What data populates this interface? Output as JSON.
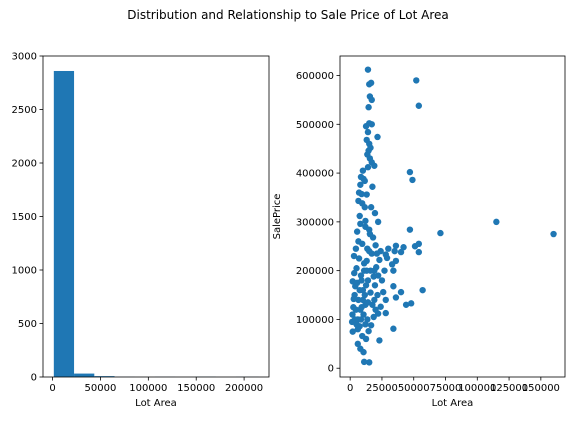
{
  "figure": {
    "suptitle": "Distribution and Relationship to Sale Price of Lot Area"
  },
  "chart_data": [
    {
      "type": "bar",
      "subtype": "histogram",
      "xlabel": "Lot Area",
      "ylabel": "",
      "xlim": [
        -10000,
        226000
      ],
      "ylim": [
        0,
        3000
      ],
      "color": "#1f77b4",
      "xticks": [
        0,
        50000,
        100000,
        150000,
        200000
      ],
      "xtick_labels": [
        "0",
        "50000",
        "100000",
        "150000",
        "200000"
      ],
      "yticks": [
        0,
        500,
        1000,
        1500,
        2000,
        2500,
        3000
      ],
      "ytick_labels": [
        "0",
        "500",
        "1000",
        "1500",
        "2000",
        "2500",
        "3000"
      ],
      "bins": [
        {
          "x0": 1300,
          "x1": 22430,
          "count": 2860
        },
        {
          "x0": 22430,
          "x1": 43560,
          "count": 32
        },
        {
          "x0": 43560,
          "x1": 64690,
          "count": 8
        },
        {
          "x0": 64690,
          "x1": 85820,
          "count": 1
        },
        {
          "x0": 85820,
          "x1": 106950,
          "count": 0
        },
        {
          "x0": 106950,
          "x1": 128080,
          "count": 1
        },
        {
          "x0": 128080,
          "x1": 149210,
          "count": 0
        },
        {
          "x0": 149210,
          "x1": 170340,
          "count": 2
        },
        {
          "x0": 170340,
          "x1": 191470,
          "count": 0
        },
        {
          "x0": 191470,
          "x1": 215245,
          "count": 1
        }
      ]
    },
    {
      "type": "scatter",
      "xlabel": "Lot Area",
      "ylabel": "SalePrice",
      "xlim": [
        -8000,
        169000
      ],
      "ylim": [
        -18000,
        640000
      ],
      "color": "#1f77b4",
      "xticks": [
        0,
        25000,
        50000,
        75000,
        100000,
        125000,
        150000
      ],
      "xtick_labels": [
        "0",
        "25000",
        "50000",
        "75000",
        "100000",
        "125000",
        "150000"
      ],
      "yticks": [
        0,
        100000,
        200000,
        300000,
        400000,
        500000,
        600000
      ],
      "ytick_labels": [
        "0",
        "100000",
        "200000",
        "300000",
        "400000",
        "500000",
        "600000"
      ],
      "points": [
        [
          14000,
          612000
        ],
        [
          52000,
          590000
        ],
        [
          16500,
          585000
        ],
        [
          15000,
          582000
        ],
        [
          15500,
          557000
        ],
        [
          17000,
          550000
        ],
        [
          54000,
          538000
        ],
        [
          14500,
          535000
        ],
        [
          15000,
          502000
        ],
        [
          17000,
          500000
        ],
        [
          12500,
          496000
        ],
        [
          14000,
          484000
        ],
        [
          21500,
          474000
        ],
        [
          13000,
          468000
        ],
        [
          15000,
          460000
        ],
        [
          16000,
          452000
        ],
        [
          14500,
          446000
        ],
        [
          13500,
          438000
        ],
        [
          15500,
          430000
        ],
        [
          17000,
          422000
        ],
        [
          19000,
          415000
        ],
        [
          14000,
          412000
        ],
        [
          10000,
          405000
        ],
        [
          47000,
          402000
        ],
        [
          49000,
          386000
        ],
        [
          8500,
          392000
        ],
        [
          11500,
          384000
        ],
        [
          17500,
          372000
        ],
        [
          8000,
          376000
        ],
        [
          13000,
          356000
        ],
        [
          6500,
          343000
        ],
        [
          9500,
          338000
        ],
        [
          16500,
          330000
        ],
        [
          19500,
          318000
        ],
        [
          22000,
          300000
        ],
        [
          8000,
          296000
        ],
        [
          12000,
          290000
        ],
        [
          15000,
          284000
        ],
        [
          47000,
          284000
        ],
        [
          71000,
          277000
        ],
        [
          115000,
          300000
        ],
        [
          160000,
          275000
        ],
        [
          36000,
          251000
        ],
        [
          51000,
          250000
        ],
        [
          54000,
          255000
        ],
        [
          42000,
          248000
        ],
        [
          30000,
          245000
        ],
        [
          35000,
          240000
        ],
        [
          24000,
          240000
        ],
        [
          40000,
          238000
        ],
        [
          28000,
          233000
        ],
        [
          54000,
          238000
        ],
        [
          29000,
          226000
        ],
        [
          36000,
          220000
        ],
        [
          33000,
          213000
        ],
        [
          34000,
          200000
        ],
        [
          27000,
          200000
        ],
        [
          19000,
          200000
        ],
        [
          22000,
          190000
        ],
        [
          25000,
          180000
        ],
        [
          34000,
          168000
        ],
        [
          40000,
          156000
        ],
        [
          57000,
          160000
        ],
        [
          26000,
          156000
        ],
        [
          36000,
          145000
        ],
        [
          28000,
          140000
        ],
        [
          44000,
          130000
        ],
        [
          48000,
          133000
        ],
        [
          24000,
          126000
        ],
        [
          22000,
          112000
        ],
        [
          28000,
          113000
        ],
        [
          34000,
          81000
        ],
        [
          23000,
          57000
        ],
        [
          11000,
          13000
        ],
        [
          15000,
          12000
        ],
        [
          10500,
          33000
        ],
        [
          8000,
          40000
        ],
        [
          6000,
          50000
        ],
        [
          12500,
          60000
        ],
        [
          2000,
          75000
        ],
        [
          1500,
          95000
        ],
        [
          2500,
          125000
        ],
        [
          3500,
          150000
        ],
        [
          4000,
          168000
        ],
        [
          2000,
          178000
        ],
        [
          5000,
          205000
        ],
        [
          3000,
          230000
        ],
        [
          4500,
          245000
        ],
        [
          6500,
          260000
        ],
        [
          5500,
          280000
        ],
        [
          7500,
          312000
        ],
        [
          9000,
          357000
        ],
        [
          10500,
          388000
        ],
        [
          7000,
          360000
        ],
        [
          11500,
          330000
        ],
        [
          12000,
          302000
        ],
        [
          18000,
          268000
        ],
        [
          20000,
          252000
        ],
        [
          21000,
          235000
        ],
        [
          23000,
          222000
        ],
        [
          20500,
          207000
        ],
        [
          18500,
          188000
        ],
        [
          19500,
          170000
        ],
        [
          21500,
          150000
        ],
        [
          17500,
          130000
        ],
        [
          18500,
          105000
        ],
        [
          16500,
          88000
        ],
        [
          14500,
          76000
        ],
        [
          9500,
          66000
        ],
        [
          7500,
          86000
        ],
        [
          1800,
          110000
        ],
        [
          2800,
          142000
        ],
        [
          3200,
          195000
        ],
        [
          6000,
          100000
        ],
        [
          13500,
          100000
        ],
        [
          12000,
          130000
        ],
        [
          10000,
          160000
        ],
        [
          8500,
          190000
        ],
        [
          11000,
          215000
        ],
        [
          13500,
          245000
        ],
        [
          15500,
          275000
        ],
        [
          9500,
          255000
        ],
        [
          7000,
          225000
        ],
        [
          5500,
          175000
        ],
        [
          4500,
          120000
        ],
        [
          16000,
          200000
        ],
        [
          14000,
          180000
        ],
        [
          12500,
          170000
        ],
        [
          10000,
          140000
        ],
        [
          8000,
          120000
        ],
        [
          6500,
          140000
        ],
        [
          7500,
          160000
        ],
        [
          9000,
          180000
        ],
        [
          11000,
          200000
        ],
        [
          13000,
          220000
        ],
        [
          15000,
          240000
        ],
        [
          17000,
          235000
        ],
        [
          16000,
          155000
        ],
        [
          14000,
          135000
        ],
        [
          19000,
          140000
        ],
        [
          20000,
          120000
        ],
        [
          12000,
          90000
        ],
        [
          10500,
          110000
        ],
        [
          8500,
          100000
        ],
        [
          6000,
          80000
        ],
        [
          5000,
          90000
        ],
        [
          3800,
          100000
        ],
        [
          9000,
          125000
        ],
        [
          11500,
          150000
        ],
        [
          13000,
          200000
        ]
      ]
    }
  ]
}
